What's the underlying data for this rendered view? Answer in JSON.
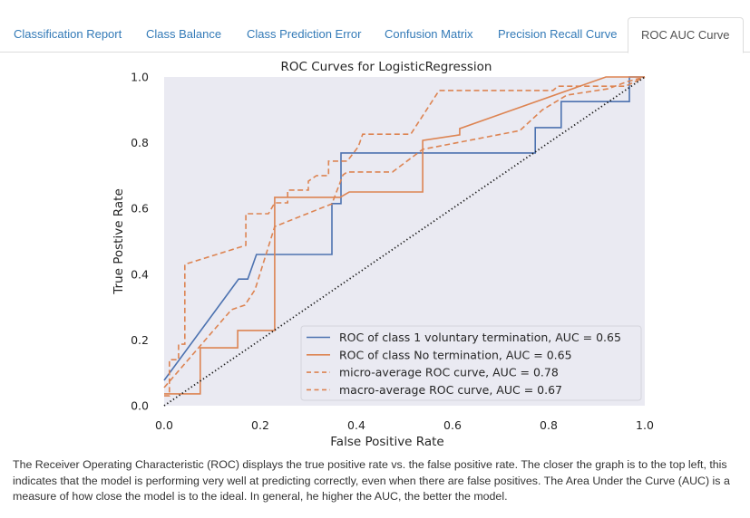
{
  "tabs": [
    {
      "label": "Classification Report",
      "active": false
    },
    {
      "label": "Class Balance",
      "active": false
    },
    {
      "label": "Class Prediction Error",
      "active": false
    },
    {
      "label": "Confusion Matrix",
      "active": false
    },
    {
      "label": "Precision Recall Curve",
      "active": false
    },
    {
      "label": "ROC AUC Curve",
      "active": true
    }
  ],
  "description": "The Receiver Operating Characteristic (ROC) displays the true positive rate vs. the false positive rate. The closer the graph is to the top left, this indicates that the model is performing very well at predicting correctly, even when there are false positives. The Area Under the Curve (AUC) is a measure of how close the model is to the ideal. In general, he higher the AUC, the better the model.",
  "colors": {
    "blue": "#4c72b0",
    "orange": "#dd8452",
    "plot_bg": "#eaeaf2",
    "link": "#337ab7",
    "diagonal": "#1a1a1a"
  },
  "chart_data": {
    "type": "line",
    "title": "ROC Curves for LogisticRegression",
    "xlabel": "False Positive Rate",
    "ylabel": "True Postive Rate",
    "xlim": [
      0.0,
      1.0
    ],
    "ylim": [
      0.0,
      1.0
    ],
    "xticks": [
      "0.0",
      "0.2",
      "0.4",
      "0.6",
      "0.8",
      "1.0"
    ],
    "yticks": [
      "0.0",
      "0.2",
      "0.4",
      "0.6",
      "0.8",
      "1.0"
    ],
    "grid": false,
    "legend_position": "lower-right",
    "series": [
      {
        "name": "ROC of class 1 voluntary termination, AUC = 0.65",
        "color": "#4c72b0",
        "style": "solid",
        "x": [
          0.0,
          0.155,
          0.174,
          0.192,
          0.349,
          0.349,
          0.368,
          0.368,
          0.772,
          0.772,
          0.826,
          0.826,
          0.968,
          0.968,
          1.0
        ],
        "y": [
          0.077,
          0.385,
          0.385,
          0.46,
          0.46,
          0.615,
          0.615,
          0.769,
          0.769,
          0.846,
          0.846,
          0.925,
          0.925,
          1.0,
          1.0
        ]
      },
      {
        "name": "ROC of class No termination, AUC = 0.65",
        "color": "#dd8452",
        "style": "solid",
        "x": [
          0.0,
          0.075,
          0.075,
          0.153,
          0.153,
          0.23,
          0.23,
          0.366,
          0.385,
          0.538,
          0.538,
          0.615,
          0.615,
          0.919,
          1.0
        ],
        "y": [
          0.036,
          0.036,
          0.176,
          0.176,
          0.229,
          0.229,
          0.634,
          0.634,
          0.65,
          0.65,
          0.807,
          0.824,
          0.843,
          1.0,
          1.0
        ]
      },
      {
        "name": "micro-average ROC curve, AUC = 0.78",
        "color": "#dd8452",
        "style": "dashed",
        "x": [
          0.0,
          0.011,
          0.011,
          0.03,
          0.03,
          0.043,
          0.043,
          0.17,
          0.17,
          0.217,
          0.23,
          0.257,
          0.257,
          0.3,
          0.3,
          0.317,
          0.342,
          0.342,
          0.381,
          0.404,
          0.413,
          0.513,
          0.572,
          0.809,
          0.819,
          0.96,
          1.0
        ],
        "y": [
          0.03,
          0.03,
          0.14,
          0.14,
          0.187,
          0.187,
          0.43,
          0.488,
          0.584,
          0.584,
          0.617,
          0.617,
          0.656,
          0.656,
          0.683,
          0.7,
          0.7,
          0.744,
          0.744,
          0.788,
          0.826,
          0.826,
          0.959,
          0.959,
          0.972,
          0.972,
          1.0
        ]
      },
      {
        "name": "macro-average ROC curve, AUC = 0.67",
        "color": "#dd8452",
        "style": "dashed",
        "x": [
          0.0,
          0.14,
          0.168,
          0.189,
          0.23,
          0.349,
          0.372,
          0.381,
          0.475,
          0.538,
          0.74,
          0.787,
          0.838,
          0.923,
          0.964,
          1.0
        ],
        "y": [
          0.055,
          0.292,
          0.306,
          0.353,
          0.545,
          0.614,
          0.702,
          0.711,
          0.711,
          0.78,
          0.837,
          0.9,
          0.945,
          0.964,
          0.986,
          1.0
        ]
      }
    ],
    "reference_line": {
      "name": "chance",
      "style": "dotted",
      "x": [
        0.0,
        1.0
      ],
      "y": [
        0.0,
        1.0
      ]
    }
  }
}
